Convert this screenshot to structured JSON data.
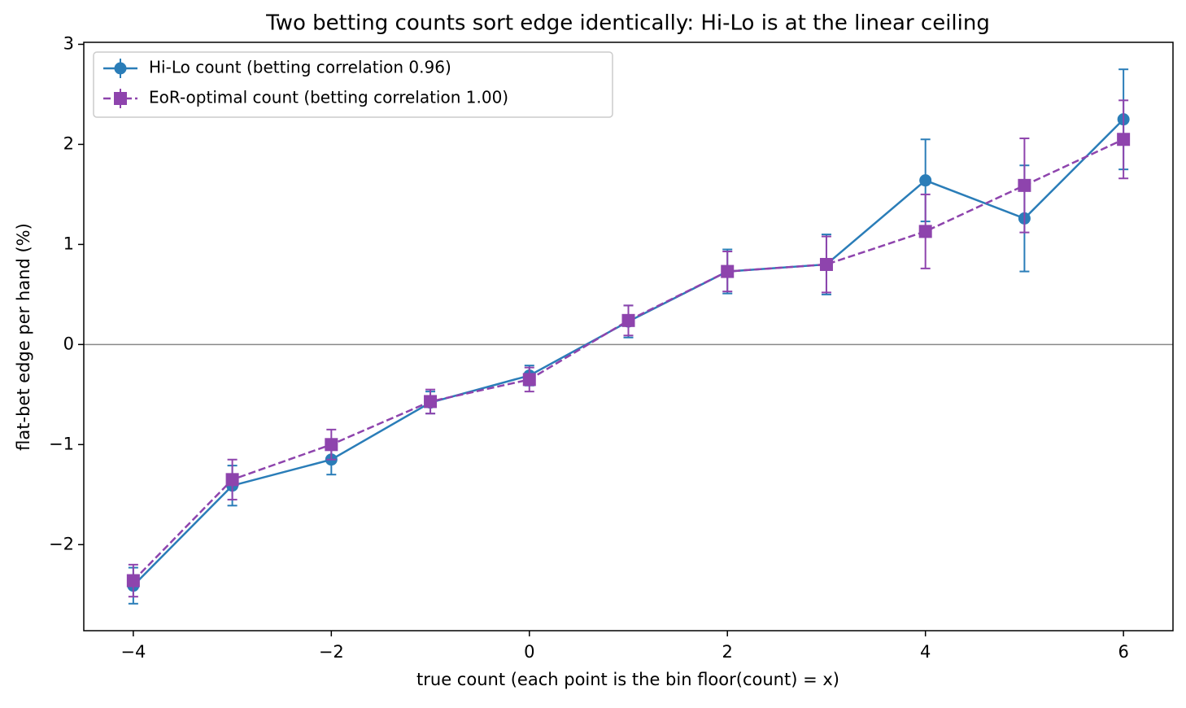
{
  "chart_data": {
    "type": "errorbar-line",
    "title": "Two betting counts sort edge identically: Hi-Lo is at the linear ceiling",
    "xlabel": "true count (each point is the bin floor(count) = x)",
    "ylabel": "flat-bet edge per hand (%)",
    "x": [
      -4,
      -3,
      -2,
      -1,
      0,
      1,
      2,
      3,
      4,
      5,
      6
    ],
    "series": [
      {
        "name": "Hi-Lo count  (betting correlation 0.96)",
        "color": "#2a7db8",
        "marker": "circle",
        "dashed": false,
        "values": [
          -2.41,
          -1.41,
          -1.15,
          -0.58,
          -0.31,
          0.23,
          0.73,
          0.8,
          1.64,
          1.26,
          2.25
        ],
        "errors": [
          0.18,
          0.2,
          0.15,
          0.11,
          0.1,
          0.16,
          0.22,
          0.3,
          0.41,
          0.53,
          0.5
        ]
      },
      {
        "name": "EoR-optimal count  (betting correlation 1.00)",
        "color": "#8e44ad",
        "marker": "square",
        "dashed": true,
        "values": [
          -2.36,
          -1.35,
          -1.0,
          -0.57,
          -0.35,
          0.24,
          0.73,
          0.8,
          1.13,
          1.59,
          2.05
        ],
        "errors": [
          0.16,
          0.2,
          0.15,
          0.12,
          0.12,
          0.15,
          0.2,
          0.28,
          0.37,
          0.47,
          0.39
        ]
      }
    ],
    "xlim": [
      -4.5,
      6.5
    ],
    "ylim": [
      -2.86,
      3.02
    ],
    "xticks": [
      {
        "value": -4,
        "label": "−4"
      },
      {
        "value": -2,
        "label": "−2"
      },
      0,
      2,
      4,
      6
    ],
    "yticks": [
      {
        "value": -2,
        "label": "−2"
      },
      {
        "value": -1,
        "label": "−1"
      },
      0,
      1,
      2,
      3
    ],
    "reference_line": 0,
    "grid": false,
    "legend": "upper-left"
  }
}
